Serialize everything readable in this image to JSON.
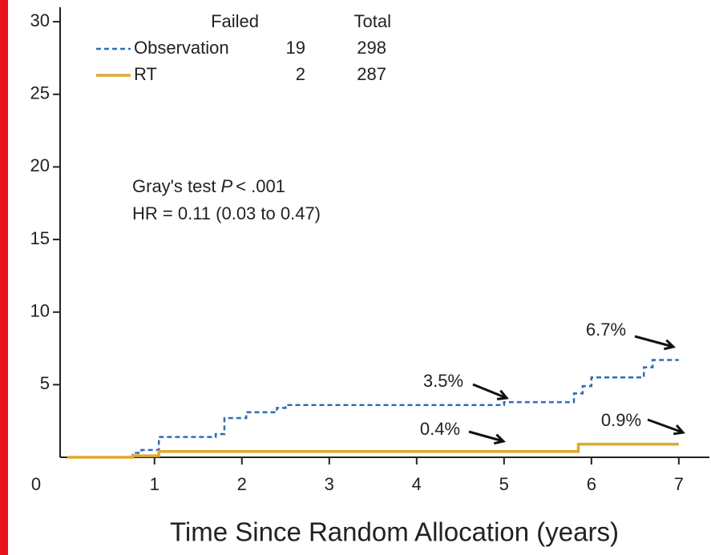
{
  "chart_data": {
    "type": "line",
    "step": "post",
    "xlabel": "Time Since Random Allocation (years)",
    "xlim": [
      -0.08,
      7.35
    ],
    "xticks": [
      1,
      2,
      3,
      4,
      5,
      6,
      7
    ],
    "ylim": [
      0,
      31
    ],
    "yticks": [
      0,
      5,
      10,
      15,
      20,
      25,
      30
    ],
    "series": [
      {
        "name": "Observation",
        "color": "#2e6db4",
        "dash": true,
        "x": [
          0,
          0.75,
          0.85,
          1.05,
          1.7,
          1.8,
          2.05,
          2.4,
          2.5,
          5.0,
          5.8,
          5.9,
          6.0,
          6.6,
          6.7,
          7.0
        ],
        "values": [
          0,
          0.3,
          0.5,
          1.4,
          1.6,
          2.7,
          3.1,
          3.4,
          3.6,
          3.8,
          4.4,
          4.9,
          5.5,
          6.2,
          6.7,
          6.7
        ],
        "failed": 19,
        "total": 298
      },
      {
        "name": "RT",
        "color": "#e0a92a",
        "dash": false,
        "x": [
          0,
          0.75,
          1.05,
          5.85,
          7.0
        ],
        "values": [
          0,
          0.1,
          0.4,
          0.9,
          0.9
        ],
        "failed": 2,
        "total": 287
      }
    ],
    "legend_headers": [
      "Failed",
      "Total"
    ],
    "stats": {
      "test": "Gray's test",
      "p_symbol": "P",
      "p_value": "< .001",
      "hr": "HR = 0.11 (0.03 to 0.47)"
    },
    "annotations": [
      "6.7%",
      "3.5%",
      "0.4%",
      "0.9%"
    ]
  }
}
